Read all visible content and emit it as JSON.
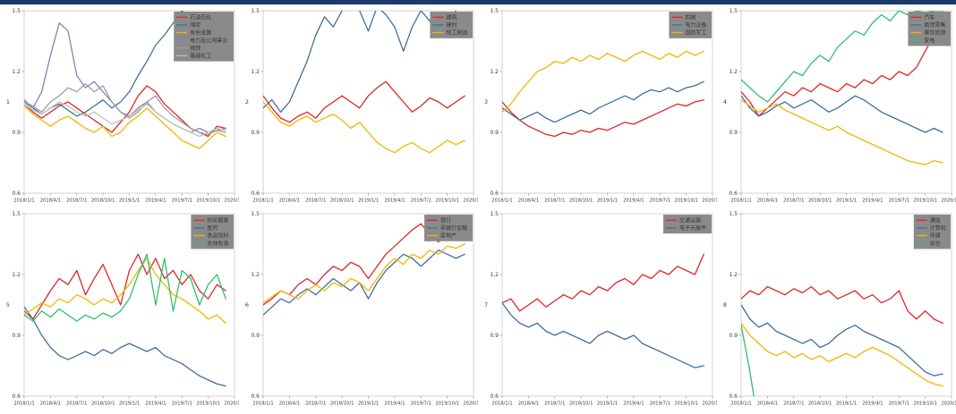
{
  "page": {
    "top_bar_color": "#1b3a68",
    "background": "#ffffff"
  },
  "chart_config": {
    "type": "line",
    "grid": false,
    "legend_position": "top-right",
    "legend_bg": "#8a8a8a",
    "legend_text_color": "#353535",
    "axis_color": "#c9c9c9",
    "tick_text_color": "#3c3c3c",
    "ylim": [
      0.6,
      1.5
    ],
    "y_tick_labels": [
      "0.6",
      "0.9",
      "1.2",
      "1.5"
    ],
    "x_months_total": 24,
    "x_tick_labels": [
      "2018/1/1",
      "2018/4/1",
      "2018/7/1",
      "2018/10/1",
      "2019/1/1",
      "2019/4/1",
      "2019/7/1",
      "2019/10/1",
      "2020/1/1"
    ]
  },
  "chart_data": [
    {
      "axis_label": "1",
      "series": [
        {
          "name": "石油石化",
          "color": "#e02428",
          "values": [
            1.04,
            1.0,
            0.97,
            1.0,
            1.03,
            1.05,
            1.02,
            0.99,
            0.96,
            0.93,
            0.9,
            0.95,
            1.0,
            1.08,
            1.13,
            1.1,
            1.04,
            1.0,
            0.96,
            0.92,
            0.9,
            0.88,
            0.93,
            0.92
          ]
        },
        {
          "name": "煤炭",
          "color": "#3f6e9e",
          "values": [
            1.05,
            1.02,
            0.99,
            1.02,
            1.04,
            1.01,
            0.98,
            1.0,
            1.03,
            1.06,
            1.02,
            1.05,
            1.1,
            1.18,
            1.25,
            1.33,
            1.38,
            1.44,
            1.5,
            1.46,
            1.4,
            1.36,
            1.42,
            1.47
          ]
        },
        {
          "name": "有色金属",
          "color": "#efb700",
          "values": [
            1.03,
            0.99,
            0.96,
            0.93,
            0.96,
            0.98,
            0.95,
            0.92,
            0.9,
            0.93,
            0.88,
            0.9,
            0.95,
            0.98,
            1.02,
            0.98,
            0.94,
            0.9,
            0.86,
            0.84,
            0.82,
            0.86,
            0.9,
            0.88
          ]
        },
        {
          "name": "电力及公用事业",
          "color": "#8781bd",
          "values": [
            1.06,
            1.02,
            1.1,
            1.28,
            1.44,
            1.4,
            1.18,
            1.12,
            1.15,
            1.1,
            1.05,
            1.0,
            0.98,
            1.02,
            1.05,
            1.0,
            0.97,
            0.94,
            0.92,
            0.9,
            0.92,
            0.9,
            0.91,
            0.92
          ]
        },
        {
          "name": "钢铁",
          "color": "#9e9e9e",
          "values": [
            1.05,
            1.03,
            1.0,
            1.05,
            1.08,
            1.12,
            1.1,
            1.14,
            1.1,
            1.13,
            1.05,
            1.0,
            0.97,
            1.0,
            1.05,
            1.08,
            1.02,
            0.98,
            0.95,
            0.92,
            0.9,
            0.89,
            0.91,
            0.9
          ]
        },
        {
          "name": "基础化工",
          "color": "#bcc8b4",
          "values": [
            1.04,
            1.01,
            0.99,
            1.02,
            1.05,
            1.03,
            1.0,
            0.98,
            1.0,
            0.97,
            0.94,
            0.96,
            0.98,
            1.01,
            1.04,
            1.0,
            0.97,
            0.94,
            0.92,
            0.9,
            0.88,
            0.9,
            0.92,
            0.91
          ]
        }
      ]
    },
    {
      "axis_label": "2",
      "series": [
        {
          "name": "建筑",
          "color": "#e02428",
          "values": [
            1.08,
            1.02,
            0.97,
            0.95,
            0.98,
            1.0,
            0.97,
            1.02,
            1.05,
            1.08,
            1.05,
            1.02,
            1.08,
            1.12,
            1.15,
            1.1,
            1.05,
            1.0,
            1.03,
            1.07,
            1.05,
            1.02,
            1.05,
            1.08
          ]
        },
        {
          "name": "建材",
          "color": "#3f6e9e",
          "values": [
            1.02,
            1.06,
            1.0,
            1.05,
            1.15,
            1.25,
            1.38,
            1.47,
            1.42,
            1.5,
            1.55,
            1.5,
            1.4,
            1.52,
            1.48,
            1.42,
            1.3,
            1.42,
            1.5,
            1.45,
            1.38,
            1.44,
            1.5,
            1.53
          ]
        },
        {
          "name": "轻工制造",
          "color": "#efb700",
          "values": [
            1.05,
            1.0,
            0.95,
            0.93,
            0.96,
            0.98,
            0.95,
            0.97,
            0.99,
            0.96,
            0.92,
            0.95,
            0.9,
            0.85,
            0.82,
            0.8,
            0.83,
            0.85,
            0.82,
            0.8,
            0.83,
            0.86,
            0.84,
            0.86
          ]
        }
      ]
    },
    {
      "axis_label": "3",
      "series": [
        {
          "name": "机械",
          "color": "#e02428",
          "values": [
            1.05,
            1.0,
            0.96,
            0.93,
            0.91,
            0.89,
            0.88,
            0.9,
            0.89,
            0.91,
            0.9,
            0.92,
            0.91,
            0.93,
            0.95,
            0.94,
            0.96,
            0.98,
            1.0,
            1.02,
            1.04,
            1.03,
            1.05,
            1.06
          ]
        },
        {
          "name": "电力设备",
          "color": "#3f6e9e",
          "values": [
            1.02,
            0.99,
            0.96,
            0.98,
            1.0,
            0.97,
            0.95,
            0.97,
            0.99,
            1.01,
            0.99,
            1.02,
            1.04,
            1.06,
            1.08,
            1.06,
            1.09,
            1.11,
            1.1,
            1.12,
            1.1,
            1.12,
            1.13,
            1.15
          ]
        },
        {
          "name": "国防军工",
          "color": "#efb700",
          "values": [
            1.0,
            1.04,
            1.1,
            1.15,
            1.2,
            1.22,
            1.25,
            1.24,
            1.27,
            1.25,
            1.28,
            1.26,
            1.29,
            1.27,
            1.25,
            1.28,
            1.3,
            1.28,
            1.26,
            1.29,
            1.27,
            1.3,
            1.28,
            1.3
          ]
        }
      ]
    },
    {
      "axis_label": "4",
      "series": [
        {
          "name": "汽车",
          "color": "#e02428",
          "values": [
            1.1,
            1.05,
            0.98,
            1.02,
            1.06,
            1.1,
            1.08,
            1.12,
            1.1,
            1.14,
            1.12,
            1.1,
            1.14,
            1.12,
            1.16,
            1.14,
            1.18,
            1.16,
            1.2,
            1.18,
            1.22,
            1.3,
            1.38,
            1.4
          ]
        },
        {
          "name": "商贸零售",
          "color": "#3f6e9e",
          "values": [
            1.08,
            1.02,
            0.98,
            1.0,
            1.03,
            1.05,
            1.02,
            1.04,
            1.06,
            1.03,
            1.0,
            1.02,
            1.05,
            1.08,
            1.06,
            1.03,
            1.0,
            0.98,
            0.96,
            0.94,
            0.92,
            0.9,
            0.92,
            0.9
          ]
        },
        {
          "name": "餐饮旅游",
          "color": "#efb700",
          "values": [
            1.06,
            1.03,
            1.0,
            1.02,
            1.04,
            1.01,
            0.99,
            0.97,
            0.95,
            0.93,
            0.91,
            0.93,
            0.9,
            0.88,
            0.86,
            0.84,
            0.82,
            0.8,
            0.78,
            0.76,
            0.75,
            0.74,
            0.76,
            0.75
          ]
        },
        {
          "name": "家电",
          "color": "#2fbf71",
          "values": [
            1.16,
            1.12,
            1.08,
            1.05,
            1.1,
            1.15,
            1.2,
            1.18,
            1.24,
            1.28,
            1.25,
            1.32,
            1.36,
            1.4,
            1.38,
            1.44,
            1.48,
            1.45,
            1.5,
            1.48,
            1.5,
            1.49,
            1.5,
            1.5
          ]
        }
      ]
    },
    {
      "axis_label": "5",
      "series": [
        {
          "name": "纺织服装",
          "color": "#e02428",
          "values": [
            1.02,
            0.98,
            1.05,
            1.12,
            1.18,
            1.15,
            1.22,
            1.1,
            1.18,
            1.25,
            1.15,
            1.05,
            1.22,
            1.3,
            1.2,
            1.28,
            1.18,
            1.22,
            1.15,
            1.2,
            1.12,
            1.08,
            1.15,
            1.12
          ]
        },
        {
          "name": "医药",
          "color": "#3f6e9e",
          "values": [
            1.04,
            0.98,
            0.9,
            0.84,
            0.8,
            0.78,
            0.8,
            0.82,
            0.8,
            0.83,
            0.81,
            0.84,
            0.86,
            0.84,
            0.82,
            0.84,
            0.8,
            0.78,
            0.76,
            0.73,
            0.7,
            0.68,
            0.66,
            0.65
          ]
        },
        {
          "name": "食品饮料",
          "color": "#efb700",
          "values": [
            1.0,
            1.03,
            1.06,
            1.04,
            1.08,
            1.06,
            1.1,
            1.08,
            1.05,
            1.08,
            1.06,
            1.1,
            1.15,
            1.22,
            1.28,
            1.2,
            1.15,
            1.1,
            1.08,
            1.05,
            1.02,
            0.98,
            1.0,
            0.96
          ]
        },
        {
          "name": "农林牧渔",
          "color": "#2fbf71",
          "values": [
            1.0,
            0.97,
            1.02,
            0.99,
            1.03,
            1.0,
            0.97,
            1.0,
            0.98,
            1.01,
            0.99,
            1.02,
            1.08,
            1.2,
            1.3,
            1.05,
            1.28,
            1.02,
            1.22,
            1.18,
            1.05,
            1.15,
            1.2,
            1.08
          ]
        }
      ]
    },
    {
      "axis_label": "6",
      "series": [
        {
          "name": "银行",
          "color": "#e02428",
          "values": [
            1.05,
            1.08,
            1.12,
            1.1,
            1.15,
            1.18,
            1.15,
            1.2,
            1.24,
            1.22,
            1.26,
            1.24,
            1.18,
            1.24,
            1.3,
            1.34,
            1.38,
            1.42,
            1.45,
            1.4,
            1.36,
            1.4,
            1.44,
            1.42
          ]
        },
        {
          "name": "非银行金融",
          "color": "#3f6e9e",
          "values": [
            1.0,
            1.04,
            1.08,
            1.06,
            1.1,
            1.13,
            1.1,
            1.14,
            1.18,
            1.15,
            1.12,
            1.16,
            1.08,
            1.16,
            1.22,
            1.26,
            1.3,
            1.28,
            1.24,
            1.28,
            1.32,
            1.3,
            1.28,
            1.3
          ]
        },
        {
          "name": "房地产",
          "color": "#efb700",
          "values": [
            1.06,
            1.09,
            1.12,
            1.1,
            1.08,
            1.12,
            1.15,
            1.12,
            1.16,
            1.14,
            1.18,
            1.16,
            1.12,
            1.18,
            1.24,
            1.28,
            1.25,
            1.3,
            1.28,
            1.32,
            1.3,
            1.34,
            1.33,
            1.35
          ]
        }
      ]
    },
    {
      "axis_label": "7",
      "series": [
        {
          "name": "交通运输",
          "color": "#e02428",
          "values": [
            1.06,
            1.08,
            1.02,
            1.05,
            1.08,
            1.04,
            1.07,
            1.1,
            1.08,
            1.12,
            1.1,
            1.14,
            1.12,
            1.16,
            1.18,
            1.15,
            1.2,
            1.18,
            1.22,
            1.2,
            1.24,
            1.22,
            1.2,
            1.3
          ]
        },
        {
          "name": "电子元器件",
          "color": "#3f6e9e",
          "values": [
            1.06,
            1.0,
            0.96,
            0.94,
            0.96,
            0.92,
            0.9,
            0.92,
            0.9,
            0.88,
            0.86,
            0.9,
            0.92,
            0.9,
            0.88,
            0.9,
            0.86,
            0.84,
            0.82,
            0.8,
            0.78,
            0.76,
            0.74,
            0.75
          ]
        }
      ]
    },
    {
      "axis_label": "8",
      "series": [
        {
          "name": "通信",
          "color": "#e02428",
          "values": [
            1.08,
            1.12,
            1.1,
            1.14,
            1.12,
            1.1,
            1.13,
            1.11,
            1.14,
            1.1,
            1.12,
            1.08,
            1.1,
            1.12,
            1.08,
            1.1,
            1.06,
            1.08,
            1.12,
            1.02,
            0.98,
            1.02,
            0.98,
            0.96
          ]
        },
        {
          "name": "计算机",
          "color": "#3f6e9e",
          "values": [
            1.05,
            0.98,
            0.94,
            0.96,
            0.92,
            0.9,
            0.88,
            0.86,
            0.88,
            0.84,
            0.86,
            0.9,
            0.93,
            0.95,
            0.92,
            0.9,
            0.88,
            0.86,
            0.84,
            0.8,
            0.76,
            0.72,
            0.7,
            0.71
          ]
        },
        {
          "name": "传媒",
          "color": "#efb700",
          "values": [
            0.96,
            0.9,
            0.86,
            0.82,
            0.8,
            0.82,
            0.79,
            0.81,
            0.78,
            0.8,
            0.77,
            0.79,
            0.81,
            0.79,
            0.82,
            0.84,
            0.82,
            0.8,
            0.77,
            0.74,
            0.71,
            0.68,
            0.66,
            0.65
          ]
        },
        {
          "name": "综合",
          "color": "#2fbf71",
          "values": [
            0.95,
            0.72,
            0.45,
            null,
            null,
            null,
            null,
            null,
            null,
            null,
            null,
            null,
            null,
            null,
            null,
            null,
            null,
            null,
            null,
            null,
            null,
            null,
            null,
            null
          ]
        }
      ]
    }
  ]
}
